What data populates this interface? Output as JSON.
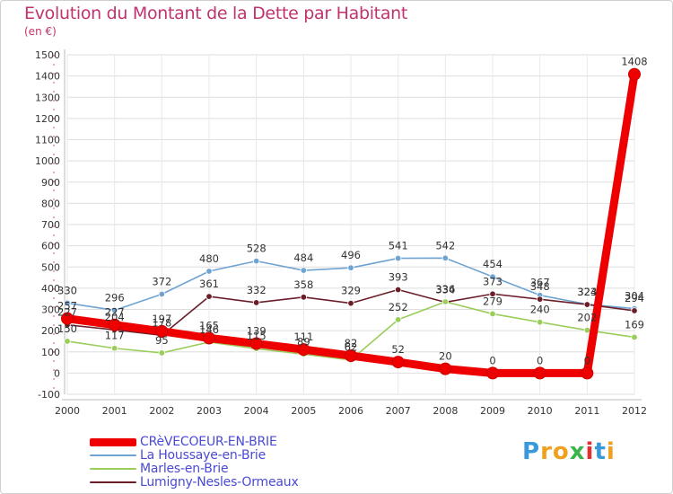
{
  "header": {
    "title": "Evolution du Montant de la Dette par Habitant",
    "unit": "(en €)"
  },
  "brand": {
    "name": "Proxiti",
    "colors": [
      "#3a9ad9",
      "#f0a020",
      "#f0a020",
      "#3ab54a",
      "#e03030",
      "#3a9ad9",
      "#f0a020"
    ]
  },
  "chart_data": {
    "type": "line",
    "title": "Evolution du Montant de la Dette par Habitant",
    "subtitle": "(en €)",
    "x": [
      "2000",
      "2001",
      "2002",
      "2003",
      "2004",
      "2005",
      "2006",
      "2007",
      "2008",
      "2009",
      "2010",
      "2011",
      "2012"
    ],
    "yticks": [
      -100,
      0,
      100,
      200,
      300,
      400,
      500,
      600,
      700,
      800,
      900,
      1000,
      1100,
      1200,
      1300,
      1400,
      1500
    ],
    "ylim": [
      -100,
      1500
    ],
    "grid": true,
    "legend_position": "bottom-left",
    "series": [
      {
        "name": "La Houssaye-en-Brie",
        "color": "#6fa3d2",
        "values": [
          330,
          296,
          372,
          480,
          528,
          484,
          496,
          541,
          542,
          454,
          367,
          324,
          304
        ],
        "labels": [
          "330",
          "296",
          "372",
          "480",
          "528",
          "484",
          "496",
          "541",
          "542",
          "454",
          "367",
          "324",
          "304"
        ]
      },
      {
        "name": "Lumigny-Nesles-Ormeaux",
        "color": "#6b1e2a",
        "values": [
          227,
          204,
          178,
          361,
          332,
          358,
          329,
          393,
          334,
          373,
          348,
          323,
          294
        ],
        "labels": [
          "227",
          "204",
          "178",
          "361",
          "332",
          "358",
          "329",
          "393",
          "334",
          "373",
          "348",
          "323",
          "294"
        ]
      },
      {
        "name": "Marles-en-Brie",
        "color": "#9acd5a",
        "values": [
          150,
          117,
          95,
          146,
          115,
          89,
          62,
          252,
          336,
          279,
          240,
          202,
          169
        ],
        "labels": [
          "150",
          "117",
          "95",
          "146",
          "115",
          "89",
          "62",
          "252",
          "336",
          "279",
          "240",
          "202",
          "169"
        ]
      },
      {
        "name": "CRèVECOEUR-EN-BRIE",
        "color": "#ee0000",
        "values": [
          257,
          227,
          197,
          165,
          139,
          111,
          82,
          52,
          20,
          0,
          0,
          0,
          1408
        ],
        "labels": [
          "257",
          "227",
          "197",
          "165",
          "139",
          "111",
          "82",
          "52",
          "20",
          "0",
          "0",
          "0",
          "1408"
        ]
      }
    ],
    "legend": [
      {
        "name": "CRèVECOEUR-EN-BRIE",
        "color": "#ee0000",
        "thickness": 9
      },
      {
        "name": "La Houssaye-en-Brie",
        "color": "#6fa3d2",
        "thickness": 2
      },
      {
        "name": "Marles-en-Brie",
        "color": "#9acd5a",
        "thickness": 2
      },
      {
        "name": "Lumigny-Nesles-Ormeaux",
        "color": "#6b1e2a",
        "thickness": 2
      }
    ]
  }
}
